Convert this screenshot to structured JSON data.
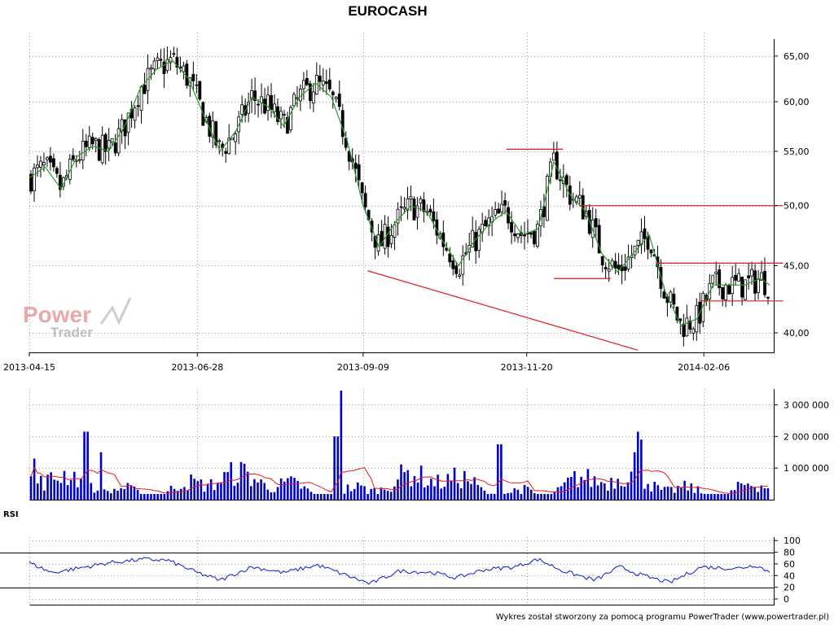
{
  "title": "EUROCASH",
  "footer": "Wykres został stworzony za pomocą programu PowerTrader (www.powertrader.pl)",
  "watermark": {
    "line1": "Power",
    "line2": "Trader"
  },
  "colors": {
    "candle": "#000000",
    "ma": "#2a9a2a",
    "support": "#e51a1a",
    "volume": "#0000cc",
    "volume_ma": "#e51a1a",
    "rsi": "#1a2ad0",
    "watermark_red": "#e6a0a0",
    "watermark_grey": "#b8b8b8"
  },
  "chart_data": [
    {
      "id": "price",
      "type": "candlestick",
      "x_tick_labels": [
        "2013-04-15",
        "2013-06-28",
        "2013-09-09",
        "2013-11-20",
        "2014-02-06"
      ],
      "y_tick_labels": [
        "40,00",
        "45,00",
        "50,00",
        "55,00",
        "60,00",
        "65,00"
      ],
      "y_ticks": [
        40,
        45,
        50,
        55,
        60,
        65
      ],
      "log_scale": true,
      "ylim": [
        38.5,
        68
      ],
      "grid": true,
      "ma_series": [
        [
          "2013-04-15",
          52.5
        ],
        [
          "2013-04-22",
          53.5
        ],
        [
          "2013-04-29",
          51.5
        ],
        [
          "2013-05-06",
          54.5
        ],
        [
          "2013-05-13",
          55.5
        ],
        [
          "2013-05-20",
          55.0
        ],
        [
          "2013-05-27",
          57.5
        ],
        [
          "2013-06-03",
          61.5
        ],
        [
          "2013-06-10",
          63.5
        ],
        [
          "2013-06-17",
          64.5
        ],
        [
          "2013-06-24",
          62.5
        ],
        [
          "2013-07-01",
          58.5
        ],
        [
          "2013-07-08",
          55.0
        ],
        [
          "2013-07-15",
          57.0
        ],
        [
          "2013-07-22",
          60.5
        ],
        [
          "2013-07-29",
          59.5
        ],
        [
          "2013-08-05",
          57.5
        ],
        [
          "2013-08-12",
          60.5
        ],
        [
          "2013-08-19",
          62.0
        ],
        [
          "2013-08-26",
          60.5
        ],
        [
          "2013-09-02",
          56.0
        ],
        [
          "2013-09-09",
          50.0
        ],
        [
          "2013-09-16",
          46.5
        ],
        [
          "2013-09-23",
          48.5
        ],
        [
          "2013-09-30",
          50.0
        ],
        [
          "2013-10-07",
          49.5
        ],
        [
          "2013-10-14",
          47.0
        ],
        [
          "2013-10-21",
          45.0
        ],
        [
          "2013-10-28",
          47.0
        ],
        [
          "2013-11-04",
          48.5
        ],
        [
          "2013-11-11",
          49.5
        ],
        [
          "2013-11-18",
          47.5
        ],
        [
          "2013-11-25",
          48.0
        ],
        [
          "2013-12-02",
          54.0
        ],
        [
          "2013-12-09",
          51.0
        ],
        [
          "2013-12-16",
          49.5
        ],
        [
          "2013-12-23",
          46.0
        ],
        [
          "2013-12-30",
          44.5
        ],
        [
          "2014-01-06",
          46.0
        ],
        [
          "2014-01-13",
          47.5
        ],
        [
          "2014-01-20",
          43.0
        ],
        [
          "2014-01-27",
          40.5
        ],
        [
          "2014-02-03",
          41.0
        ],
        [
          "2014-02-10",
          43.5
        ],
        [
          "2014-02-17",
          43.5
        ],
        [
          "2014-02-24",
          43.5
        ],
        [
          "2014-03-03",
          44.0
        ],
        [
          "2014-03-07",
          43.5
        ]
      ],
      "lines": [
        {
          "from": [
            "2013-11-11",
            55.2
          ],
          "to": [
            "2013-12-06",
            55.2
          ]
        },
        {
          "from": [
            "2013-12-13",
            50.0
          ],
          "to": [
            "2014-03-13",
            50.0
          ]
        },
        {
          "from": [
            "2013-12-02",
            44.0
          ],
          "to": [
            "2013-12-27",
            44.0
          ]
        },
        {
          "from": [
            "2014-01-16",
            45.2
          ],
          "to": [
            "2014-03-13",
            45.2
          ]
        },
        {
          "from": [
            "2014-02-04",
            42.3
          ],
          "to": [
            "2014-03-13",
            42.3
          ]
        },
        {
          "from": [
            "2013-09-11",
            44.6
          ],
          "to": [
            "2014-01-08",
            38.8
          ]
        }
      ]
    },
    {
      "id": "volume",
      "type": "bar",
      "y_tick_labels": [
        "1 000 000",
        "2 000 000",
        "3 000 000"
      ],
      "y_ticks": [
        1000000,
        2000000,
        3000000
      ],
      "ylim": [
        0,
        3500000
      ],
      "peaks": [
        [
          "2013-04-17",
          1300000
        ],
        [
          "2013-05-10",
          2150000
        ],
        [
          "2013-05-17",
          1500000
        ],
        [
          "2013-08-28",
          2000000
        ],
        [
          "2013-08-30",
          3450000
        ],
        [
          "2013-11-08",
          1750000
        ],
        [
          "2014-01-06",
          1500000
        ],
        [
          "2014-01-08",
          2150000
        ],
        [
          "2014-01-10",
          1900000
        ]
      ]
    },
    {
      "id": "rsi",
      "type": "line",
      "label": "RSI",
      "y_tick_labels": [
        "0",
        "20",
        "40",
        "60",
        "80",
        "100"
      ],
      "y_ticks": [
        0,
        20,
        40,
        60,
        80,
        100
      ],
      "levels": [
        20,
        80
      ],
      "ylim": [
        0,
        100
      ],
      "series": [
        [
          "2013-04-15",
          62
        ],
        [
          "2013-04-25",
          45
        ],
        [
          "2013-05-10",
          55
        ],
        [
          "2013-05-20",
          62
        ],
        [
          "2013-06-05",
          68
        ],
        [
          "2013-06-15",
          66
        ],
        [
          "2013-06-28",
          45
        ],
        [
          "2013-07-08",
          32
        ],
        [
          "2013-07-22",
          55
        ],
        [
          "2013-08-05",
          45
        ],
        [
          "2013-08-20",
          58
        ],
        [
          "2013-09-02",
          40
        ],
        [
          "2013-09-12",
          26
        ],
        [
          "2013-09-25",
          48
        ],
        [
          "2013-10-10",
          45
        ],
        [
          "2013-10-20",
          36
        ],
        [
          "2013-11-01",
          50
        ],
        [
          "2013-11-15",
          55
        ],
        [
          "2013-11-25",
          68
        ],
        [
          "2013-12-06",
          48
        ],
        [
          "2013-12-20",
          32
        ],
        [
          "2013-12-31",
          55
        ],
        [
          "2014-01-10",
          40
        ],
        [
          "2014-01-22",
          28
        ],
        [
          "2014-02-05",
          55
        ],
        [
          "2014-02-20",
          52
        ],
        [
          "2014-03-01",
          58
        ],
        [
          "2014-03-07",
          46
        ]
      ]
    }
  ]
}
